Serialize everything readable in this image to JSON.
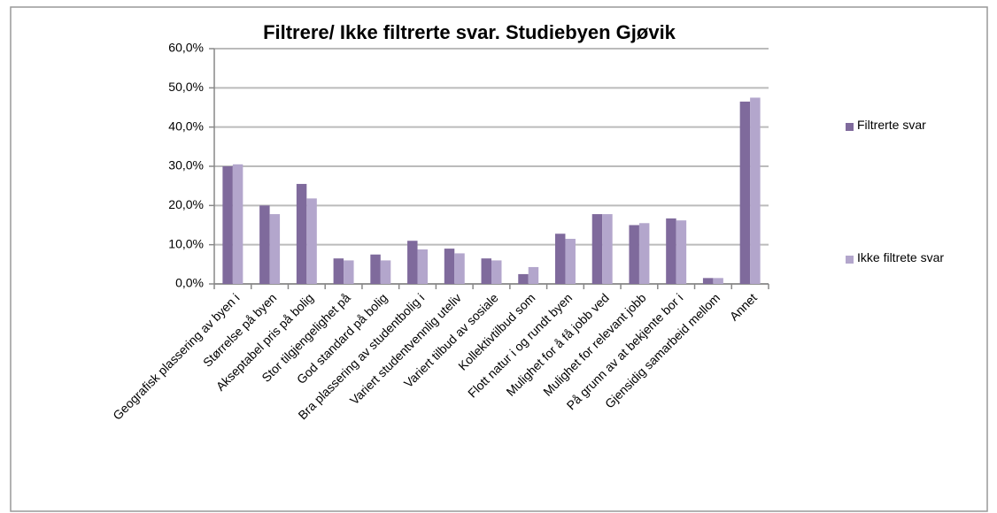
{
  "chart_data": {
    "type": "bar",
    "title": "Filtrere/ Ikke filtrerte svar. Studiebyen Gjøvik",
    "categories": [
      "Geografisk plassering av byen i",
      "Størrelse på byen",
      "Akseptabel pris på bolig",
      "Stor tilgjengelighet på",
      "God standard på bolig",
      "Bra plassering av studentbolig i",
      "Variert studentvennlig uteliv",
      "Variert tilbud av sosiale",
      "Kollektivtilbud som",
      "Flott natur i og rundt byen",
      "Mulighet for å få jobb ved",
      "Mulighet for relevant jobb",
      "På grunn av at bekjente bor i",
      "Gjensidig samarbeid mellom",
      "Annet"
    ],
    "series": [
      {
        "name": "Filtrerte svar",
        "color": "#7f6a9c",
        "values": [
          30,
          20,
          25.5,
          6.5,
          7.5,
          11,
          9,
          6.5,
          2.5,
          12.8,
          17.8,
          15,
          16.7,
          1.5,
          46.5
        ]
      },
      {
        "name": "Ikke filtrete svar",
        "color": "#b3a6cc",
        "values": [
          30.5,
          17.8,
          21.8,
          6,
          6,
          8.8,
          7.8,
          6,
          4.3,
          11.5,
          17.8,
          15.5,
          16.2,
          1.5,
          47.5
        ]
      }
    ],
    "ylim": [
      0,
      60
    ],
    "yticks": [
      {
        "value": 0,
        "label": "0,0%"
      },
      {
        "value": 10,
        "label": "10,0%"
      },
      {
        "value": 20,
        "label": "20,0%"
      },
      {
        "value": 30,
        "label": "30,0%"
      },
      {
        "value": 40,
        "label": "40,0%"
      },
      {
        "value": 50,
        "label": "50,0%"
      },
      {
        "value": 60,
        "label": "60,0%"
      }
    ],
    "grid": true,
    "legend": "right"
  }
}
